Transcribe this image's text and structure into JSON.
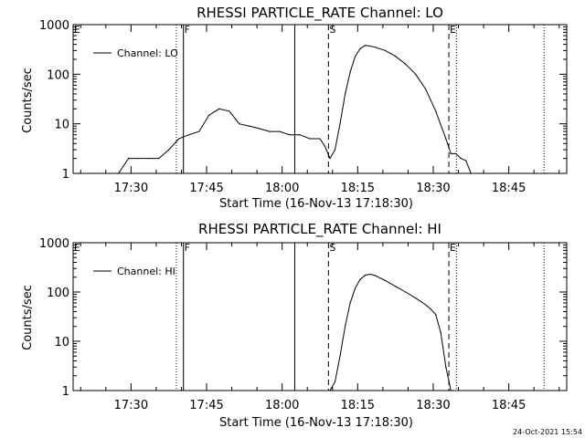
{
  "chart_data": [
    {
      "type": "line",
      "title": "RHESSI PARTICLE_RATE Channel: LO",
      "xlabel": "Start Time (16-Nov-13 17:18:30)",
      "ylabel": "Counts/sec",
      "y_scale": "log",
      "ylim": [
        1,
        1000
      ],
      "xlim": [
        "17:18:30",
        "18:56:30"
      ],
      "x_tick_labels": [
        "17:30",
        "17:45",
        "18:00",
        "18:15",
        "18:30",
        "18:45"
      ],
      "y_tick_labels": [
        "1",
        "10",
        "100",
        "1000"
      ],
      "legend": "top-left",
      "series": [
        {
          "name": "Channel: LO",
          "x": [
            "17:19",
            "17:21",
            "17:24",
            "17:27",
            "17:29",
            "17:31",
            "17:33",
            "17:35",
            "17:37",
            "17:39",
            "17:41",
            "17:43",
            "17:45",
            "17:47",
            "17:49",
            "17:51",
            "17:53",
            "17:55",
            "17:57",
            "17:59",
            "18:01",
            "18:03",
            "18:05",
            "18:07",
            "18:08",
            "18:09",
            "18:10",
            "18:11",
            "18:12",
            "18:13",
            "18:14",
            "18:15",
            "18:16",
            "18:17",
            "18:18",
            "18:20",
            "18:22",
            "18:24",
            "18:26",
            "18:28",
            "18:30",
            "18:32",
            "18:33",
            "18:34",
            "18:35",
            "18:36",
            "18:37",
            "18:38",
            "18:40",
            "18:42",
            "18:44",
            "18:46",
            "18:48",
            "18:50",
            "18:52",
            "18:54",
            "18:56"
          ],
          "values": [
            1,
            1,
            1,
            1,
            2,
            2,
            2,
            2,
            3,
            5,
            6,
            7,
            15,
            20,
            18,
            10,
            9,
            8,
            7,
            7,
            6,
            6,
            5,
            5,
            3.5,
            2,
            3,
            10,
            40,
            110,
            230,
            330,
            380,
            370,
            350,
            300,
            230,
            160,
            100,
            50,
            18,
            5,
            2.5,
            2.5,
            2,
            1.8,
            1,
            1,
            1,
            1,
            1,
            1,
            1,
            1,
            1,
            1,
            1
          ]
        }
      ],
      "markers": [
        {
          "label": "F",
          "line": "solid"
        },
        {
          "label": "S",
          "line": "dashed"
        },
        {
          "label": "E",
          "line": "dashed"
        }
      ]
    },
    {
      "type": "line",
      "title": "RHESSI PARTICLE_RATE Channel: HI",
      "xlabel": "Start Time (16-Nov-13 17:18:30)",
      "ylabel": "Counts/sec",
      "y_scale": "log",
      "ylim": [
        1,
        1000
      ],
      "xlim": [
        "17:18:30",
        "18:56:30"
      ],
      "x_tick_labels": [
        "17:30",
        "17:45",
        "18:00",
        "18:15",
        "18:30",
        "18:45"
      ],
      "y_tick_labels": [
        "1",
        "10",
        "100",
        "1000"
      ],
      "legend": "top-left",
      "series": [
        {
          "name": "Channel: HI",
          "x": [
            "18:09",
            "18:10",
            "18:11",
            "18:12",
            "18:13",
            "18:14",
            "18:15",
            "18:16",
            "18:17",
            "18:18",
            "18:20",
            "18:22",
            "18:24",
            "18:26",
            "18:28",
            "18:29",
            "18:30",
            "18:31",
            "18:32",
            "18:33"
          ],
          "values": [
            1,
            1.5,
            5,
            20,
            60,
            120,
            180,
            220,
            230,
            215,
            170,
            130,
            100,
            75,
            55,
            45,
            35,
            15,
            3,
            1
          ]
        }
      ],
      "markers": [
        {
          "label": "F",
          "line": "solid"
        },
        {
          "label": "S",
          "line": "dashed"
        },
        {
          "label": "E",
          "line": "dashed"
        }
      ]
    }
  ],
  "footer": {
    "timestamp": "24-Oct-2021 15:54"
  }
}
